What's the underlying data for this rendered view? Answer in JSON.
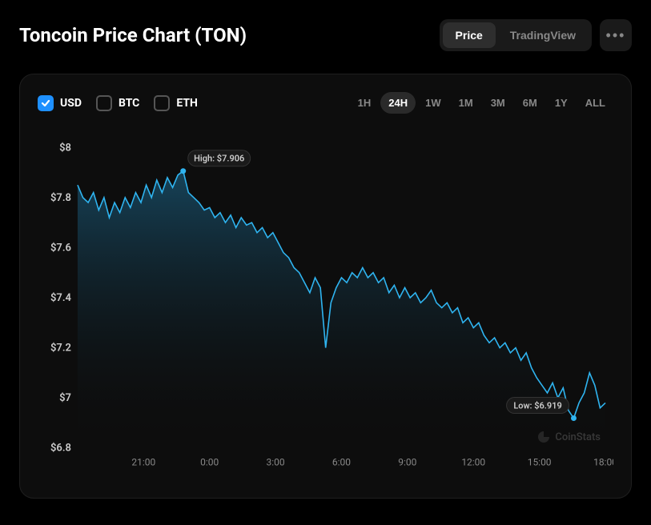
{
  "header": {
    "title": "Toncoin Price Chart (TON)",
    "tabs": [
      {
        "label": "Price",
        "active": true
      },
      {
        "label": "TradingView",
        "active": false
      }
    ]
  },
  "currencies": [
    {
      "code": "USD",
      "checked": true
    },
    {
      "code": "BTC",
      "checked": false
    },
    {
      "code": "ETH",
      "checked": false
    }
  ],
  "ranges": [
    {
      "label": "1H",
      "active": false
    },
    {
      "label": "24H",
      "active": true
    },
    {
      "label": "1W",
      "active": false
    },
    {
      "label": "1M",
      "active": false
    },
    {
      "label": "3M",
      "active": false
    },
    {
      "label": "6M",
      "active": false
    },
    {
      "label": "1Y",
      "active": false
    },
    {
      "label": "ALL",
      "active": false
    }
  ],
  "chart": {
    "type": "area",
    "ymin": 6.8,
    "ymax": 8.0,
    "yticks": [
      6.8,
      7,
      7.2,
      7.4,
      7.6,
      7.8,
      8
    ],
    "ytick_labels": [
      "$6.8",
      "$7",
      "$7.2",
      "$7.4",
      "$7.6",
      "$7.8",
      "$8"
    ],
    "xticks": [
      "21:00",
      "0:00",
      "3:00",
      "6:00",
      "9:00",
      "12:00",
      "15:00",
      "18:00"
    ],
    "xtick_positions": [
      0.125,
      0.25,
      0.375,
      0.5,
      0.625,
      0.75,
      0.875,
      1.0
    ],
    "line_color": "#2fb4f0",
    "line_width": 1.6,
    "area_color_top": "#1a5a7a",
    "area_color_bottom": "#0d0d0d",
    "area_opacity": 0.7,
    "background_color": "#0d0d0d",
    "label_color": "#cccccc",
    "high_label": "High: $7.906",
    "high_x": 0.2,
    "high_value": 7.906,
    "low_label": "Low: $6.919",
    "low_x": 0.94,
    "low_value": 6.919,
    "points": [
      [
        0.0,
        7.85
      ],
      [
        0.01,
        7.8
      ],
      [
        0.02,
        7.78
      ],
      [
        0.03,
        7.82
      ],
      [
        0.04,
        7.75
      ],
      [
        0.05,
        7.8
      ],
      [
        0.06,
        7.72
      ],
      [
        0.07,
        7.78
      ],
      [
        0.08,
        7.74
      ],
      [
        0.09,
        7.8
      ],
      [
        0.1,
        7.76
      ],
      [
        0.11,
        7.82
      ],
      [
        0.12,
        7.78
      ],
      [
        0.13,
        7.85
      ],
      [
        0.14,
        7.8
      ],
      [
        0.15,
        7.87
      ],
      [
        0.16,
        7.82
      ],
      [
        0.17,
        7.88
      ],
      [
        0.18,
        7.84
      ],
      [
        0.19,
        7.89
      ],
      [
        0.2,
        7.906
      ],
      [
        0.21,
        7.82
      ],
      [
        0.22,
        7.8
      ],
      [
        0.23,
        7.78
      ],
      [
        0.24,
        7.75
      ],
      [
        0.25,
        7.76
      ],
      [
        0.26,
        7.72
      ],
      [
        0.27,
        7.74
      ],
      [
        0.28,
        7.7
      ],
      [
        0.29,
        7.73
      ],
      [
        0.3,
        7.68
      ],
      [
        0.31,
        7.72
      ],
      [
        0.32,
        7.69
      ],
      [
        0.33,
        7.7
      ],
      [
        0.34,
        7.66
      ],
      [
        0.35,
        7.68
      ],
      [
        0.36,
        7.64
      ],
      [
        0.37,
        7.66
      ],
      [
        0.38,
        7.62
      ],
      [
        0.39,
        7.58
      ],
      [
        0.4,
        7.56
      ],
      [
        0.41,
        7.52
      ],
      [
        0.42,
        7.5
      ],
      [
        0.43,
        7.46
      ],
      [
        0.44,
        7.42
      ],
      [
        0.45,
        7.48
      ],
      [
        0.46,
        7.44
      ],
      [
        0.47,
        7.2
      ],
      [
        0.48,
        7.38
      ],
      [
        0.49,
        7.44
      ],
      [
        0.5,
        7.48
      ],
      [
        0.51,
        7.46
      ],
      [
        0.52,
        7.5
      ],
      [
        0.53,
        7.48
      ],
      [
        0.54,
        7.52
      ],
      [
        0.55,
        7.48
      ],
      [
        0.56,
        7.5
      ],
      [
        0.57,
        7.46
      ],
      [
        0.58,
        7.48
      ],
      [
        0.59,
        7.42
      ],
      [
        0.6,
        7.45
      ],
      [
        0.61,
        7.4
      ],
      [
        0.62,
        7.44
      ],
      [
        0.63,
        7.4
      ],
      [
        0.64,
        7.42
      ],
      [
        0.65,
        7.38
      ],
      [
        0.66,
        7.4
      ],
      [
        0.67,
        7.43
      ],
      [
        0.68,
        7.38
      ],
      [
        0.69,
        7.36
      ],
      [
        0.7,
        7.38
      ],
      [
        0.71,
        7.34
      ],
      [
        0.72,
        7.36
      ],
      [
        0.73,
        7.3
      ],
      [
        0.74,
        7.32
      ],
      [
        0.75,
        7.28
      ],
      [
        0.76,
        7.3
      ],
      [
        0.77,
        7.25
      ],
      [
        0.78,
        7.22
      ],
      [
        0.79,
        7.24
      ],
      [
        0.8,
        7.2
      ],
      [
        0.81,
        7.22
      ],
      [
        0.82,
        7.18
      ],
      [
        0.83,
        7.2
      ],
      [
        0.84,
        7.15
      ],
      [
        0.85,
        7.18
      ],
      [
        0.86,
        7.12
      ],
      [
        0.87,
        7.08
      ],
      [
        0.88,
        7.05
      ],
      [
        0.89,
        7.02
      ],
      [
        0.9,
        7.06
      ],
      [
        0.91,
        7.0
      ],
      [
        0.92,
        7.04
      ],
      [
        0.93,
        6.95
      ],
      [
        0.94,
        6.919
      ],
      [
        0.95,
        6.98
      ],
      [
        0.96,
        7.02
      ],
      [
        0.97,
        7.1
      ],
      [
        0.98,
        7.05
      ],
      [
        0.99,
        6.96
      ],
      [
        1.0,
        6.98
      ]
    ]
  },
  "watermark": "CoinStats"
}
